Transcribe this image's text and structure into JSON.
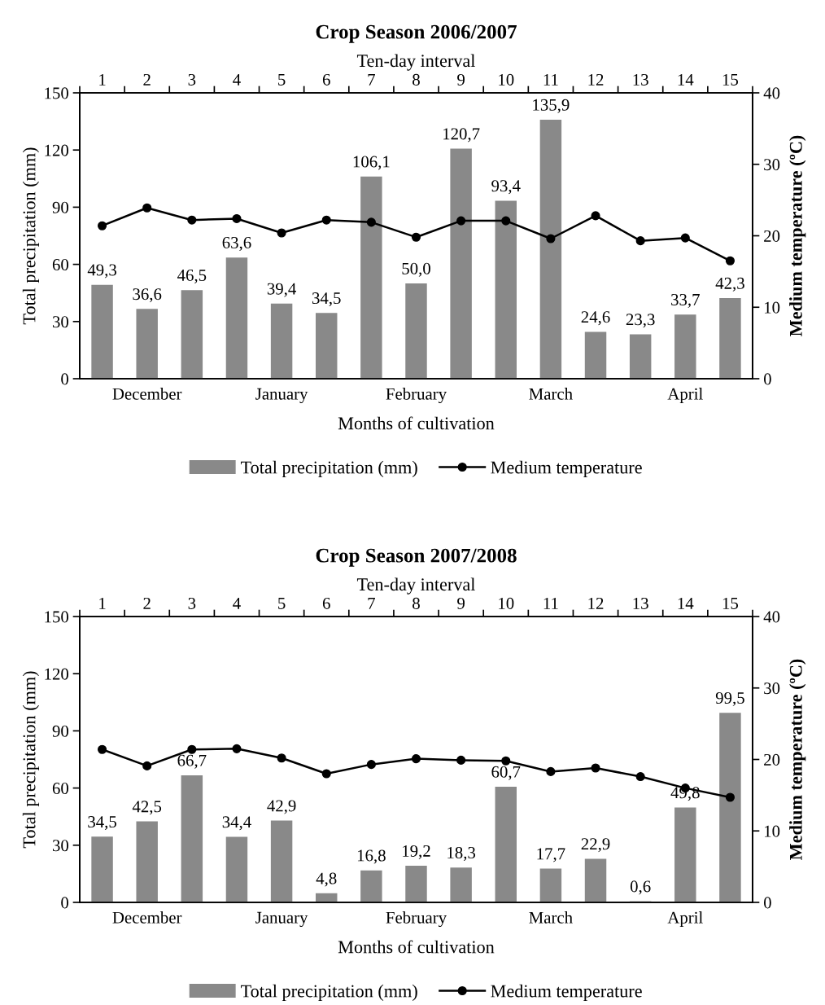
{
  "chart_data": [
    {
      "type": "bar",
      "title": "Crop Season 2006/2007",
      "x2label": "Ten-day interval",
      "xlabel": "Months of cultivation",
      "ylabel": "Total precipitation (mm)",
      "y2label": "Medium temperature (ºC)",
      "categories": [
        null,
        "December",
        null,
        null,
        "January",
        null,
        null,
        "February",
        null,
        null,
        "March",
        null,
        null,
        "April",
        null
      ],
      "x2lim": [
        0.5,
        15.5
      ],
      "x2ticks": [
        1,
        2,
        3,
        4,
        5,
        6,
        7,
        8,
        9,
        10,
        11,
        12,
        13,
        14,
        15
      ],
      "ylim": [
        0,
        150
      ],
      "yticks": [
        0,
        30,
        60,
        90,
        120,
        150
      ],
      "y2lim": [
        0,
        40
      ],
      "y2ticks": [
        0,
        10,
        20,
        30,
        40
      ],
      "legend": "bottom",
      "series": [
        {
          "name": "Total precipitation (mm)",
          "color": "#898989",
          "values": [
            49.3,
            36.6,
            46.5,
            63.6,
            39.4,
            34.5,
            106.1,
            50.0,
            120.7,
            93.4,
            135.9,
            24.6,
            23.3,
            33.7,
            42.3
          ],
          "value_labels": [
            "49,3",
            "36,6",
            "46,5",
            "63,6",
            "39,4",
            "34,5",
            "106,1",
            "50,0",
            "120,7",
            "93,4",
            "135,9",
            "24,6",
            "23,3",
            "33,7",
            "42,3"
          ]
        },
        {
          "name": "Medium temperature",
          "type": "line",
          "axis": "y2",
          "color": "#000000",
          "marker": "circle",
          "line_style": "solid",
          "values": [
            21.4,
            23.9,
            22.2,
            22.4,
            20.4,
            22.2,
            21.9,
            19.8,
            22.1,
            22.1,
            19.6,
            22.8,
            19.3,
            19.7,
            16.5
          ]
        }
      ]
    },
    {
      "type": "bar",
      "title": "Crop Season 2007/2008",
      "x2label": "Ten-day interval",
      "xlabel": "Months of cultivation",
      "ylabel": "Total precipitation (mm)",
      "y2label": "Medium temperature (ºC)",
      "categories": [
        null,
        "December",
        null,
        null,
        "January",
        null,
        null,
        "February",
        null,
        null,
        "March",
        null,
        null,
        "April",
        null
      ],
      "x2lim": [
        0.5,
        15.5
      ],
      "x2ticks": [
        1,
        2,
        3,
        4,
        5,
        6,
        7,
        8,
        9,
        10,
        11,
        12,
        13,
        14,
        15
      ],
      "ylim": [
        0,
        150
      ],
      "yticks": [
        0,
        30,
        60,
        90,
        120,
        150
      ],
      "y2lim": [
        0,
        40
      ],
      "y2ticks": [
        0,
        10,
        20,
        30,
        40
      ],
      "legend": "bottom",
      "series": [
        {
          "name": "Total precipitation (mm)",
          "color": "#898989",
          "values": [
            34.5,
            42.5,
            66.7,
            34.4,
            42.9,
            4.8,
            16.8,
            19.2,
            18.3,
            60.7,
            17.7,
            22.9,
            0.6,
            49.8,
            99.5
          ],
          "value_labels": [
            "34,5",
            "42,5",
            "66,7",
            "34,4",
            "42,9",
            "4,8",
            "16,8",
            "19,2",
            "18,3",
            "60,7",
            "17,7",
            "22,9",
            "0,6",
            "49,8",
            "99,5"
          ]
        },
        {
          "name": "Medium temperature",
          "type": "line",
          "axis": "y2",
          "color": "#000000",
          "marker": "circle",
          "line_style": "solid",
          "values": [
            21.4,
            19.1,
            21.4,
            21.5,
            20.2,
            18.0,
            19.3,
            20.1,
            19.9,
            19.8,
            18.3,
            18.8,
            17.6,
            16.0,
            14.7
          ]
        }
      ]
    }
  ]
}
